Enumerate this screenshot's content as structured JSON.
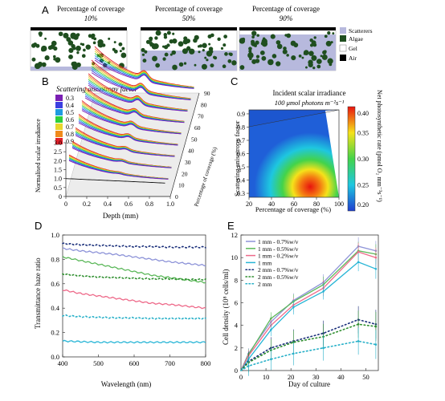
{
  "panels": {
    "A": {
      "letter": "A",
      "strips": [
        {
          "title": "Percentage of coverage",
          "value": "10%"
        },
        {
          "title": "Percentage of coverage",
          "value": "50%"
        },
        {
          "title": "Percentage of coverage",
          "value": "90%"
        }
      ],
      "legend": [
        {
          "label": "Scatterers",
          "color": "#b7b9dd"
        },
        {
          "label": "Algae",
          "color": "#1f4e1f"
        },
        {
          "label": "Gel",
          "color": "#ffffff"
        },
        {
          "label": "Air",
          "color": "#000000"
        }
      ]
    },
    "B": {
      "letter": "B",
      "title": "Scattering anisotropy factor",
      "ylabel": "Normalised scalar irradiance",
      "xlabel": "Depth (mm)",
      "zlabel": "Percentage of coverage (%)",
      "legend": [
        "0.3",
        "0.4",
        "0.5",
        "0.6",
        "0.7",
        "0.8",
        "0.9"
      ],
      "legend_colors": [
        "#7a1fb3",
        "#3b3fe0",
        "#1e9be0",
        "#2fcf3a",
        "#e8d62c",
        "#f08a1c",
        "#e0202a"
      ],
      "yticks": [
        "0",
        "0.5",
        "1.0",
        "1.5",
        "2.0",
        "2.5",
        "3.0"
      ],
      "xticks": [
        "0",
        "0.2",
        "0.4",
        "0.6",
        "0.8",
        "1.0"
      ],
      "zticks": [
        "0",
        "10",
        "20",
        "30",
        "40",
        "50",
        "60",
        "70",
        "80",
        "90"
      ]
    },
    "C": {
      "letter": "C",
      "title": "Incident scalar irradiance",
      "subtitle": "100 μmol photons m⁻²s⁻¹",
      "xlabel": "Percentage of coverage (%)",
      "ylabel": "Scattering anisotropy factor",
      "cbar_label": "Net photosynthetic rate (pmol O₂ mm⁻³s⁻¹)",
      "xticks": [
        "20",
        "40",
        "60",
        "80",
        "100"
      ],
      "yticks": [
        "0.3",
        "0.4",
        "0.5",
        "0.6",
        "0.7",
        "0.8",
        "0.9"
      ],
      "cbar_ticks": [
        "0.20",
        "0.25",
        "0.30",
        "0.35",
        "0.40"
      ]
    },
    "D": {
      "letter": "D"
    },
    "E": {
      "letter": "E"
    }
  },
  "chart_data": [
    {
      "type": "line",
      "panel": "D",
      "xlabel": "Wavelength (nm)",
      "ylabel": "Transmittance haze ratio",
      "xlim": [
        400,
        800
      ],
      "ylim": [
        0.0,
        1.0
      ],
      "xticks": [
        "400",
        "500",
        "600",
        "700",
        "800"
      ],
      "yticks": [
        "0.0",
        "0.2",
        "0.4",
        "0.6",
        "0.8",
        "1.0"
      ],
      "x": [
        400,
        450,
        500,
        550,
        600,
        650,
        700,
        750,
        800
      ],
      "series": [
        {
          "style": "dotted",
          "color": "#1a2f7a",
          "values": [
            0.93,
            0.92,
            0.915,
            0.91,
            0.905,
            0.905,
            0.9,
            0.9,
            0.9
          ]
        },
        {
          "style": "solid",
          "color": "#8d93d8",
          "values": [
            0.89,
            0.87,
            0.855,
            0.84,
            0.82,
            0.8,
            0.78,
            0.765,
            0.75
          ]
        },
        {
          "style": "solid",
          "color": "#5cb85a",
          "values": [
            0.82,
            0.79,
            0.76,
            0.73,
            0.7,
            0.67,
            0.65,
            0.63,
            0.61
          ]
        },
        {
          "style": "dotted",
          "color": "#2f8f2f",
          "values": [
            0.68,
            0.665,
            0.655,
            0.65,
            0.645,
            0.64,
            0.64,
            0.635,
            0.635
          ]
        },
        {
          "style": "solid",
          "color": "#ee6a8a",
          "values": [
            0.55,
            0.52,
            0.5,
            0.48,
            0.46,
            0.44,
            0.43,
            0.415,
            0.4
          ]
        },
        {
          "style": "dotted",
          "color": "#27b0c8",
          "values": [
            0.34,
            0.33,
            0.325,
            0.32,
            0.32,
            0.315,
            0.315,
            0.315,
            0.315
          ]
        },
        {
          "style": "solid",
          "color": "#27b5d6",
          "values": [
            0.13,
            0.125,
            0.12,
            0.12,
            0.12,
            0.12,
            0.12,
            0.12,
            0.12
          ]
        }
      ]
    },
    {
      "type": "line",
      "panel": "E",
      "xlabel": "Day of culture",
      "ylabel": "Cell density (10⁸ cells/ml)",
      "xlim": [
        0,
        55
      ],
      "ylim": [
        0,
        12
      ],
      "xticks": [
        "0",
        "10",
        "20",
        "30",
        "40",
        "50"
      ],
      "yticks": [
        "0",
        "2",
        "4",
        "6",
        "8",
        "10",
        "12"
      ],
      "x": [
        0,
        3,
        12,
        21,
        33,
        47,
        54
      ],
      "series": [
        {
          "name": "1 mm - 0.7%w/v",
          "style": "solid",
          "color": "#8d93d8",
          "values": [
            0,
            1.5,
            4.3,
            6.2,
            7.8,
            11.0,
            10.6
          ]
        },
        {
          "name": "1 mm - 0.5%w/v",
          "style": "solid",
          "color": "#5cb85a",
          "values": [
            0,
            1.4,
            4.6,
            6.1,
            7.6,
            10.6,
            10.3
          ]
        },
        {
          "name": "1 mm - 0.2%w/v",
          "style": "solid",
          "color": "#ee6a8a",
          "values": [
            0,
            1.3,
            4.0,
            5.8,
            7.3,
            10.5,
            10.0
          ]
        },
        {
          "name": "1 mm",
          "style": "solid",
          "color": "#27b5d6",
          "values": [
            0,
            1.0,
            3.6,
            5.6,
            7.0,
            9.6,
            9.0
          ]
        },
        {
          "name": "2 mm - 0.7%w/v",
          "style": "dotted",
          "color": "#1a2f7a",
          "values": [
            0,
            0.8,
            2.0,
            2.6,
            3.3,
            4.5,
            4.1
          ]
        },
        {
          "name": "2 mm - 0.5%w/v",
          "style": "dotted",
          "color": "#2f8f2f",
          "values": [
            0,
            0.7,
            1.8,
            2.5,
            3.0,
            4.1,
            3.9
          ]
        },
        {
          "name": "2 mm",
          "style": "dotted",
          "color": "#27b0c8",
          "values": [
            0,
            0.4,
            1.0,
            1.5,
            2.0,
            2.6,
            2.3
          ]
        }
      ]
    }
  ]
}
